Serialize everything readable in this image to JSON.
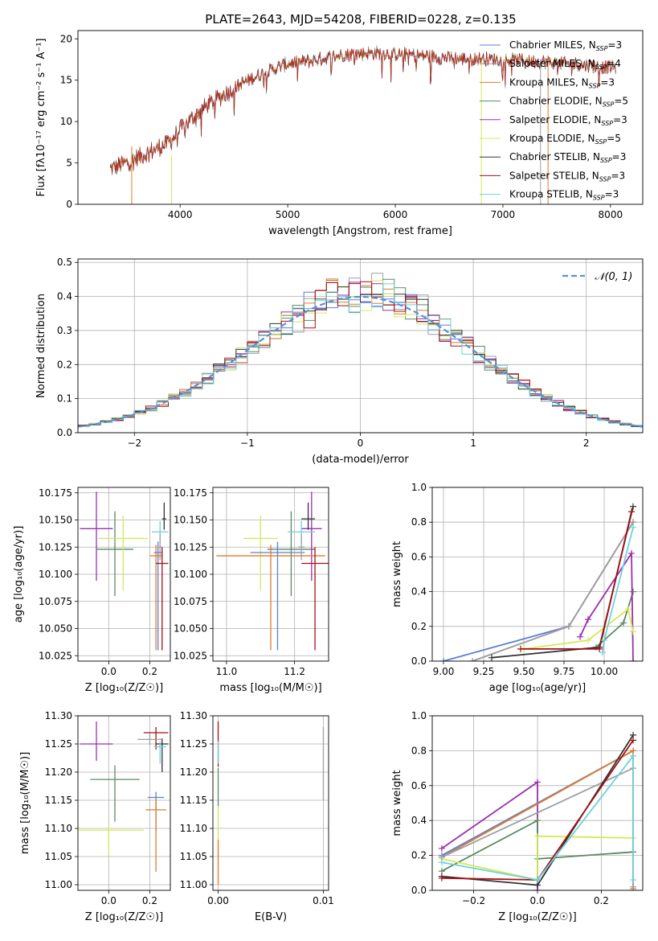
{
  "figure": {
    "title": "PLATE=2643, MJD=54208, FIBERID=0228, z=0.135"
  },
  "series_styles": [
    {
      "name": "Chabrier MILES",
      "nssp": "3",
      "color": "#5b7fd6"
    },
    {
      "name": "Salpeter MILES",
      "nssp": "4",
      "color": "#9aa0a6"
    },
    {
      "name": "Kroupa MILES",
      "nssp": "3",
      "color": "#e07b2a"
    },
    {
      "name": "Chabrier ELODIE",
      "nssp": "5",
      "color": "#5b8a63"
    },
    {
      "name": "Salpeter ELODIE",
      "nssp": "3",
      "color": "#9b2fae"
    },
    {
      "name": "Kroupa ELODIE",
      "nssp": "5",
      "color": "#d5e85a"
    },
    {
      "name": "Chabrier STELIB",
      "nssp": "3",
      "color": "#333333"
    },
    {
      "name": "Salpeter STELIB",
      "nssp": "3",
      "color": "#a50f15"
    },
    {
      "name": "Kroupa STELIB",
      "nssp": "3",
      "color": "#6fd0dc"
    }
  ],
  "chart_data": [
    {
      "id": "spectrum",
      "type": "line",
      "xlabel": "wavelength [Angstrom, rest frame]",
      "ylabel": "Flux [fλ10⁻¹⁷ erg cm⁻² s⁻¹ A⁻¹]",
      "xlim": [
        3050,
        8300
      ],
      "ylim": [
        0,
        21
      ],
      "xticks": [
        4000,
        5000,
        6000,
        7000,
        8000
      ],
      "yticks": [
        0,
        5,
        10,
        15,
        20
      ],
      "grid": false,
      "legend": "right",
      "continuum": {
        "x": [
          3350,
          3500,
          3700,
          3900,
          4000,
          4200,
          4400,
          4600,
          4800,
          5000,
          5200,
          5400,
          5600,
          5800,
          6000,
          6200,
          6400,
          6600,
          6800,
          7000,
          7200,
          7400,
          7600,
          7800,
          8050
        ],
        "y": [
          4.3,
          5.0,
          6.2,
          7.5,
          9.0,
          11.5,
          13.2,
          14.8,
          16.0,
          17.0,
          17.3,
          17.8,
          18.2,
          18.3,
          18.2,
          18.0,
          17.8,
          17.6,
          17.6,
          17.5,
          17.4,
          17.2,
          17.0,
          16.8,
          16.5
        ]
      },
      "series_names": [
        "Chabrier MILES",
        "Salpeter MILES",
        "Kroupa MILES",
        "Chabrier ELODIE",
        "Salpeter ELODIE",
        "Kroupa ELODIE",
        "Chabrier STELIB",
        "Salpeter STELIB",
        "Kroupa STELIB"
      ],
      "spikes": [
        {
          "x": 3550,
          "y0": 0,
          "y1": 7
        },
        {
          "x": 3920,
          "y0": 0,
          "y1": 6
        },
        {
          "x": 6800,
          "y0": 0,
          "y1": 17.5
        },
        {
          "x": 7350,
          "y0": 0,
          "y1": 17.5
        },
        {
          "x": 7420,
          "y0": 0,
          "y1": 18
        }
      ]
    },
    {
      "id": "residuals",
      "type": "line",
      "xlabel": "(data-model)/error",
      "ylabel": "Normed distribution",
      "xlim": [
        -2.5,
        2.5
      ],
      "ylim": [
        0,
        0.51
      ],
      "xticks": [
        -2,
        -1,
        0,
        1,
        2
      ],
      "yticks": [
        0.0,
        0.1,
        0.2,
        0.3,
        0.4,
        0.5
      ],
      "grid": true,
      "legend": "top-right",
      "gaussian": {
        "name": "𝒩(0, 1)",
        "color": "#5b8fd6",
        "mean": 0,
        "sigma": 1
      },
      "bin_width": 0.1
    },
    {
      "id": "age_vs_Z",
      "type": "scatter",
      "xlabel": "Z [log₁₀(Z/Z☉)]",
      "ylabel": "age  [log₁₀(age/yr)]",
      "xlim": [
        -0.15,
        0.3
      ],
      "ylim": [
        10.02,
        10.18
      ],
      "xticks": [
        0.0,
        0.2
      ],
      "yticks": [
        10.025,
        10.05,
        10.075,
        10.1,
        10.125,
        10.15,
        10.175
      ],
      "grid": true,
      "points": [
        {
          "series": "Salpeter ELODIE",
          "x": -0.06,
          "y": 10.142,
          "xerr": 0.08,
          "yerr_lo": 0.048,
          "yerr_hi": 0.034
        },
        {
          "series": "Chabrier ELODIE",
          "x": 0.03,
          "y": 10.123,
          "xerr": 0.09,
          "yerr_lo": 0.043,
          "yerr_hi": 0.035
        },
        {
          "series": "Kroupa ELODIE",
          "x": 0.07,
          "y": 10.133,
          "xerr": 0.12,
          "yerr_lo": 0.048,
          "yerr_hi": 0.021
        },
        {
          "series": "Kroupa STELIB",
          "x": 0.25,
          "y": 10.139,
          "xerr": 0.04,
          "yerr_lo": 0.01,
          "yerr_hi": 0.01
        },
        {
          "series": "Chabrier STELIB",
          "x": 0.27,
          "y": 10.151,
          "xerr": 0.01,
          "yerr_lo": 0.01,
          "yerr_hi": 0.015
        },
        {
          "series": "Chabrier MILES",
          "x": 0.24,
          "y": 10.12,
          "xerr": 0.02,
          "yerr_lo": 0.09,
          "yerr_hi": 0.01
        },
        {
          "series": "Kroupa MILES",
          "x": 0.23,
          "y": 10.117,
          "xerr": 0.03,
          "yerr_lo": 0.087,
          "yerr_hi": 0.01
        },
        {
          "series": "Salpeter STELIB",
          "x": 0.26,
          "y": 10.11,
          "xerr": 0.03,
          "yerr_lo": 0.08,
          "yerr_hi": 0.015
        },
        {
          "series": "Salpeter MILES",
          "x": 0.25,
          "y": 10.125,
          "xerr": 0.01,
          "yerr_lo": 0.012,
          "yerr_hi": 0.012
        }
      ]
    },
    {
      "id": "age_vs_mass",
      "type": "scatter",
      "xlabel": "mass [log₁₀(M/M☉)]",
      "ylabel": "",
      "xlim": [
        10.96,
        11.3
      ],
      "ylim": [
        10.02,
        10.18
      ],
      "xticks": [
        11.0,
        11.2
      ],
      "yticks": [
        10.025,
        10.05,
        10.075,
        10.1,
        10.125,
        10.15,
        10.175
      ],
      "grid": true,
      "points": [
        {
          "series": "Kroupa ELODIE",
          "x": 11.1,
          "y": 10.133,
          "xerr": 0.05,
          "yerr_lo": 0.048,
          "yerr_hi": 0.021
        },
        {
          "series": "Chabrier ELODIE",
          "x": 11.19,
          "y": 10.123,
          "xerr": 0.07,
          "yerr_lo": 0.043,
          "yerr_hi": 0.035
        },
        {
          "series": "Salpeter ELODIE",
          "x": 11.25,
          "y": 10.142,
          "xerr": 0.03,
          "yerr_lo": 0.048,
          "yerr_hi": 0.034
        },
        {
          "series": "Chabrier MILES",
          "x": 11.15,
          "y": 10.12,
          "xerr": 0.08,
          "yerr_lo": 0.09,
          "yerr_hi": 0.01
        },
        {
          "series": "Kroupa MILES",
          "x": 11.13,
          "y": 10.117,
          "xerr": 0.16,
          "yerr_lo": 0.087,
          "yerr_hi": 0.01
        },
        {
          "series": "Kroupa STELIB",
          "x": 11.22,
          "y": 10.139,
          "xerr": 0.04,
          "yerr_lo": 0.01,
          "yerr_hi": 0.01
        },
        {
          "series": "Chabrier STELIB",
          "x": 11.24,
          "y": 10.151,
          "xerr": 0.02,
          "yerr_lo": 0.01,
          "yerr_hi": 0.015
        },
        {
          "series": "Salpeter STELIB",
          "x": 11.26,
          "y": 10.11,
          "xerr": 0.04,
          "yerr_lo": 0.08,
          "yerr_hi": 0.015
        },
        {
          "series": "Salpeter MILES",
          "x": 11.22,
          "y": 10.125,
          "xerr": 0.01,
          "yerr_lo": 0.012,
          "yerr_hi": 0.012
        }
      ]
    },
    {
      "id": "massweight_vs_age",
      "type": "line",
      "xlabel": "age  [log₁₀(age/yr)]",
      "ylabel": "mass weight",
      "xlim": [
        8.93,
        10.24
      ],
      "ylim": [
        0,
        1
      ],
      "xticks": [
        9.0,
        9.25,
        9.5,
        9.75,
        10.0
      ],
      "yticks": [
        0.0,
        0.2,
        0.4,
        0.6,
        0.8,
        1.0
      ],
      "grid": true,
      "lines": [
        {
          "series": "Chabrier MILES",
          "x": [
            9.0,
            9.78,
            10.18
          ],
          "y": [
            0.0,
            0.2,
            0.8
          ]
        },
        {
          "series": "Kroupa MILES",
          "x": [
            9.18,
            9.78,
            10.18
          ],
          "y": [
            0.0,
            0.2,
            0.8
          ]
        },
        {
          "series": "Salpeter MILES",
          "x": [
            9.18,
            9.78,
            10.18
          ],
          "y": [
            0.0,
            0.2,
            0.8
          ]
        },
        {
          "series": "Chabrier ELODIE",
          "x": [
            9.95,
            10.12,
            10.18
          ],
          "y": [
            0.08,
            0.22,
            0.4
          ]
        },
        {
          "series": "Salpeter ELODIE",
          "x": [
            9.85,
            9.9,
            10.17,
            10.18
          ],
          "y": [
            0.14,
            0.24,
            0.62,
            0.0
          ]
        },
        {
          "series": "Kroupa ELODIE",
          "x": [
            9.5,
            9.9,
            10.15,
            10.18
          ],
          "y": [
            0.07,
            0.12,
            0.3,
            0.17
          ]
        },
        {
          "series": "Chabrier STELIB",
          "x": [
            9.3,
            9.97,
            10.18
          ],
          "y": [
            0.02,
            0.08,
            0.89
          ]
        },
        {
          "series": "Salpeter STELIB",
          "x": [
            9.48,
            9.97,
            10.17
          ],
          "y": [
            0.07,
            0.07,
            0.86
          ]
        },
        {
          "series": "Kroupa STELIB",
          "x": [
            9.99,
            10.0,
            10.18
          ],
          "y": [
            0.05,
            0.12,
            0.77
          ]
        }
      ]
    },
    {
      "id": "mass_vs_Z",
      "type": "scatter",
      "xlabel": "Z [log₁₀(Z/Z☉)]",
      "ylabel": "mass [log₁₀(M/M☉)]",
      "xlim": [
        -0.15,
        0.3
      ],
      "ylim": [
        10.99,
        11.3
      ],
      "xticks": [
        0.0,
        0.2
      ],
      "yticks": [
        11.0,
        11.05,
        11.1,
        11.15,
        11.2,
        11.25,
        11.3
      ],
      "grid": true,
      "points": [
        {
          "series": "Salpeter ELODIE",
          "x": -0.06,
          "y": 11.25,
          "xerr": 0.08,
          "yerr_lo": 0.03,
          "yerr_hi": 0.04
        },
        {
          "series": "Chabrier ELODIE",
          "x": 0.03,
          "y": 11.187,
          "xerr": 0.12,
          "yerr_lo": 0.075,
          "yerr_hi": 0.025
        },
        {
          "series": "Kroupa ELODIE",
          "x": 0.0,
          "y": 11.097,
          "xerr": 0.17,
          "yerr_lo": 0.045,
          "yerr_hi": 0.01
        },
        {
          "series": "Salpeter STELIB",
          "x": 0.23,
          "y": 11.27,
          "xerr": 0.06,
          "yerr_lo": 0.03,
          "yerr_hi": 0.01
        },
        {
          "series": "Chabrier STELIB",
          "x": 0.26,
          "y": 11.25,
          "xerr": 0.03,
          "yerr_lo": 0.05,
          "yerr_hi": 0.01
        },
        {
          "series": "Kroupa STELIB",
          "x": 0.25,
          "y": 11.245,
          "xerr": 0.03,
          "yerr_lo": 0.03,
          "yerr_hi": 0.01
        },
        {
          "series": "Chabrier MILES",
          "x": 0.23,
          "y": 11.155,
          "xerr": 0.04,
          "yerr_lo": 0.06,
          "yerr_hi": 0.01
        },
        {
          "series": "Kroupa MILES",
          "x": 0.23,
          "y": 11.133,
          "xerr": 0.05,
          "yerr_lo": 0.11,
          "yerr_hi": 0.02
        },
        {
          "series": "Salpeter MILES",
          "x": 0.2,
          "y": 11.258,
          "xerr": 0.06,
          "yerr_lo": 0.01,
          "yerr_hi": 0.01
        }
      ]
    },
    {
      "id": "mass_vs_ebv",
      "type": "scatter",
      "xlabel": "E(B-V)",
      "ylabel": "",
      "xlim": [
        -0.0005,
        0.0105
      ],
      "ylim": [
        10.99,
        11.3
      ],
      "xticks": [
        0.0,
        0.01
      ],
      "xtick_labels": [
        "0.00",
        "0.01"
      ],
      "yticks": [
        11.0,
        11.05,
        11.1,
        11.15,
        11.2,
        11.25,
        11.3
      ],
      "grid": true,
      "points": [
        {
          "series": "Salpeter STELIB",
          "x": 0.0,
          "y": 11.27,
          "xerr": 0,
          "yerr_lo": 0.06,
          "yerr_hi": 0.02
        },
        {
          "series": "Chabrier ELODIE",
          "x": 0.0,
          "y": 11.187,
          "xerr": 0,
          "yerr_lo": 0.05,
          "yerr_hi": 0.02
        },
        {
          "series": "Kroupa STELIB",
          "x": 0.0,
          "y": 11.245,
          "xerr": 0,
          "yerr_lo": 0.03,
          "yerr_hi": 0.01
        },
        {
          "series": "Kroupa ELODIE",
          "x": 0.0,
          "y": 11.1,
          "xerr": 0,
          "yerr_lo": 0.05,
          "yerr_hi": 0.04
        },
        {
          "series": "Kroupa MILES",
          "x": 0.0,
          "y": 11.05,
          "xerr": 0,
          "yerr_lo": 0.05,
          "yerr_hi": 0.03
        },
        {
          "series": "Salpeter MILES",
          "x": 0.01,
          "y": 11.2,
          "xerr": 0,
          "yerr_lo": 0.05,
          "yerr_hi": 0.08
        }
      ]
    },
    {
      "id": "massweight_vs_Z",
      "type": "line",
      "xlabel": "Z [log₁₀(Z/Z☉)]",
      "ylabel": "mass weight",
      "xlim": [
        -0.33,
        0.33
      ],
      "ylim": [
        0,
        1
      ],
      "xticks": [
        -0.2,
        0.0,
        0.2
      ],
      "yticks": [
        0.0,
        0.2,
        0.4,
        0.6,
        0.8,
        1.0
      ],
      "grid": true,
      "lines": [
        {
          "series": "Salpeter ELODIE",
          "x": [
            -0.3,
            0.0,
            0.0
          ],
          "y": [
            0.24,
            0.62,
            0.0
          ]
        },
        {
          "series": "Chabrier ELODIE",
          "x": [
            -0.3,
            0.0,
            0.0,
            0.3
          ],
          "y": [
            0.11,
            0.4,
            0.18,
            0.22
          ]
        },
        {
          "series": "Kroupa ELODIE",
          "x": [
            -0.3,
            0.0,
            0.0,
            0.3
          ],
          "y": [
            0.18,
            0.06,
            0.31,
            0.3
          ]
        },
        {
          "series": "Chabrier MILES",
          "x": [
            -0.3,
            0.3,
            0.3
          ],
          "y": [
            0.2,
            0.8,
            0.0
          ]
        },
        {
          "series": "Kroupa MILES",
          "x": [
            -0.3,
            0.3,
            0.3
          ],
          "y": [
            0.19,
            0.8,
            0.01
          ]
        },
        {
          "series": "Salpeter MILES",
          "x": [
            -0.3,
            0.3,
            0.3
          ],
          "y": [
            0.19,
            0.7,
            0.02
          ]
        },
        {
          "series": "Chabrier STELIB",
          "x": [
            -0.3,
            0.0,
            0.3
          ],
          "y": [
            0.08,
            0.03,
            0.89
          ]
        },
        {
          "series": "Salpeter STELIB",
          "x": [
            -0.3,
            0.0,
            0.3
          ],
          "y": [
            0.07,
            0.06,
            0.86
          ]
        },
        {
          "series": "Kroupa STELIB",
          "x": [
            -0.3,
            0.0,
            0.3,
            0.3
          ],
          "y": [
            0.16,
            0.06,
            0.77,
            0.06
          ]
        }
      ]
    }
  ]
}
